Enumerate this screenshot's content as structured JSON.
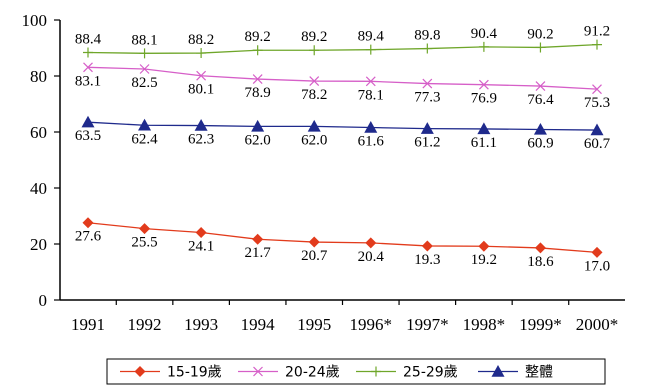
{
  "chart_data": {
    "type": "line",
    "title": "",
    "xlabel": "",
    "ylabel": "",
    "categories": [
      "1991",
      "1992",
      "1993",
      "1994",
      "1995",
      "1996*",
      "1997*",
      "1998*",
      "1999*",
      "2000*"
    ],
    "ylim": [
      0,
      100
    ],
    "yticks": [
      "0",
      "20",
      "40",
      "60",
      "80",
      "100"
    ],
    "grid": false,
    "legend_position": "bottom",
    "series": [
      {
        "name": "15-19歲",
        "color": "#e23b1c",
        "marker": "diamond",
        "values": [
          27.6,
          25.5,
          24.1,
          21.7,
          20.7,
          20.4,
          19.3,
          19.2,
          18.6,
          17.0
        ],
        "labels": [
          "27.6",
          "25.5",
          "24.1",
          "21.7",
          "20.7",
          "20.4",
          "19.3",
          "19.2",
          "18.6",
          "17.0"
        ]
      },
      {
        "name": "20-24歲",
        "color": "#d65fc8",
        "marker": "x",
        "values": [
          83.1,
          82.5,
          80.1,
          78.9,
          78.2,
          78.1,
          77.3,
          76.9,
          76.4,
          75.3
        ],
        "labels": [
          "83.1",
          "82.5",
          "80.1",
          "78.9",
          "78.2",
          "78.1",
          "77.3",
          "76.9",
          "76.4",
          "75.3"
        ]
      },
      {
        "name": "25-29歲",
        "color": "#6fa62a",
        "marker": "plus",
        "values": [
          88.4,
          88.1,
          88.2,
          89.2,
          89.2,
          89.4,
          89.8,
          90.4,
          90.2,
          91.2
        ],
        "labels": [
          "88.4",
          "88.1",
          "88.2",
          "89.2",
          "89.2",
          "89.4",
          "89.8",
          "90.4",
          "90.2",
          "91.2"
        ]
      },
      {
        "name": "整體",
        "color": "#1f2a8c",
        "marker": "triangle",
        "values": [
          63.5,
          62.4,
          62.3,
          62.0,
          62.0,
          61.6,
          61.2,
          61.1,
          60.9,
          60.7
        ],
        "labels": [
          "63.5",
          "62.4",
          "62.3",
          "62.0",
          "62.0",
          "61.6",
          "61.2",
          "61.1",
          "60.9",
          "60.7"
        ]
      }
    ]
  }
}
